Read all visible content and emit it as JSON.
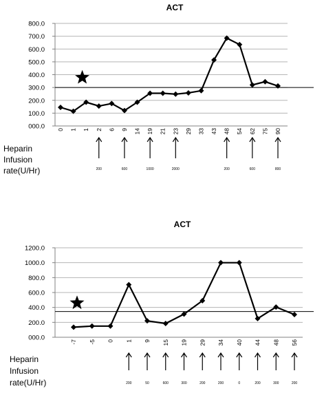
{
  "side_label": [
    "Heparin",
    "Infusion",
    "rate(U/Hr)"
  ],
  "chart_data": [
    {
      "type": "line",
      "title": "ACT",
      "ylim": [
        0,
        800
      ],
      "ystep": 100,
      "ytick_labels": [
        "000.0",
        "100.0",
        "200.0",
        "300.0",
        "400.0",
        "500.0",
        "600.0",
        "700.0",
        "800.0"
      ],
      "grid": true,
      "categories": [
        "0",
        "1",
        "1",
        "2",
        "6",
        "9",
        "14",
        "19",
        "21",
        "23",
        "29",
        "33",
        "43",
        "48",
        "54",
        "62",
        "75",
        "90"
      ],
      "values": [
        145,
        115,
        185,
        155,
        175,
        120,
        185,
        255,
        255,
        248,
        258,
        275,
        515,
        685,
        635,
        320,
        345,
        312
      ],
      "threshold": 300,
      "star": {
        "category_index": 1,
        "value": 378
      },
      "infusion": [
        {
          "category_index": 3,
          "rate": "200"
        },
        {
          "category_index": 5,
          "rate": "600"
        },
        {
          "category_index": 7,
          "rate": "1000"
        },
        {
          "category_index": 9,
          "rate": "2000"
        },
        {
          "category_index": 13,
          "rate": "200"
        },
        {
          "category_index": 15,
          "rate": "600"
        },
        {
          "category_index": 17,
          "rate": "800"
        }
      ]
    },
    {
      "type": "line",
      "title": "ACT",
      "ylim": [
        0,
        1200
      ],
      "ystep": 200,
      "ytick_labels": [
        "000.0",
        "200.0",
        "400.0",
        "600.0",
        "800.0",
        "1000.0",
        "1200.0"
      ],
      "grid": true,
      "categories": [
        "-7",
        "-5",
        "0",
        "1",
        "9",
        "15",
        "19",
        "29",
        "34",
        "40",
        "44",
        "48",
        "56"
      ],
      "values": [
        135,
        150,
        150,
        705,
        220,
        185,
        310,
        490,
        1000,
        1000,
        250,
        405,
        305
      ],
      "threshold": 345,
      "star": {
        "category_index": 0,
        "value": 460
      },
      "infusion": [
        {
          "category_index": 3,
          "rate": "200"
        },
        {
          "category_index": 4,
          "rate": "50"
        },
        {
          "category_index": 5,
          "rate": "600"
        },
        {
          "category_index": 6,
          "rate": "300"
        },
        {
          "category_index": 7,
          "rate": "200"
        },
        {
          "category_index": 8,
          "rate": "200"
        },
        {
          "category_index": 9,
          "rate": "0"
        },
        {
          "category_index": 10,
          "rate": "200"
        },
        {
          "category_index": 11,
          "rate": "300"
        },
        {
          "category_index": 12,
          "rate": "200"
        }
      ]
    }
  ]
}
